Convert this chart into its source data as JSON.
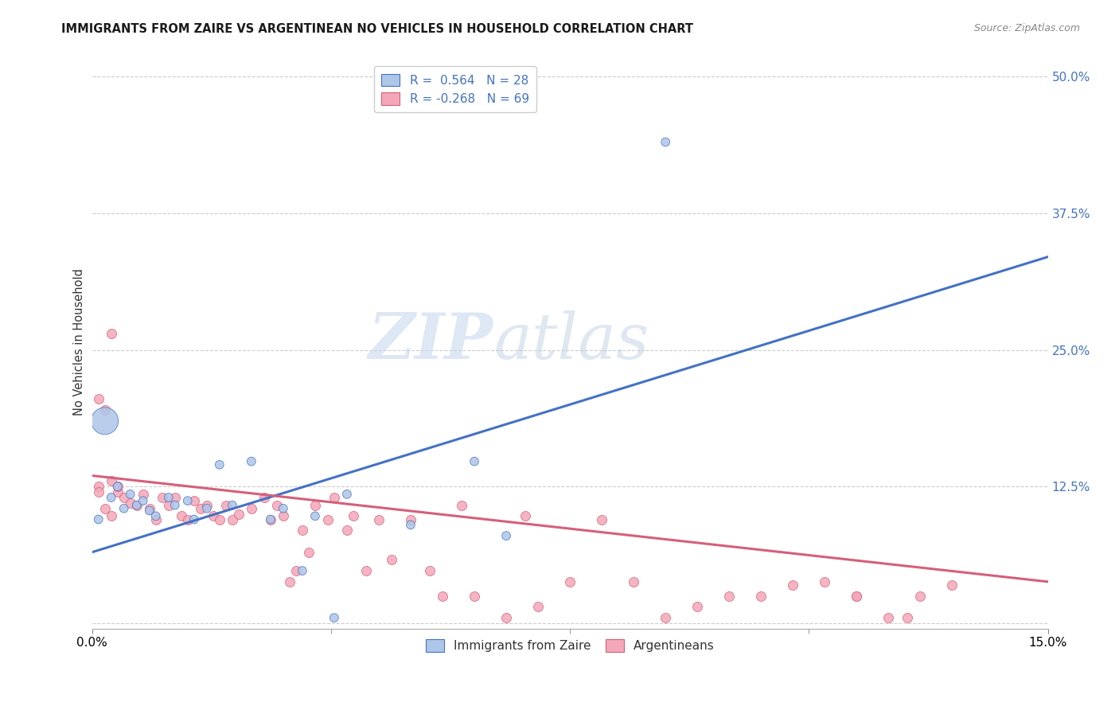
{
  "title": "IMMIGRANTS FROM ZAIRE VS ARGENTINEAN NO VEHICLES IN HOUSEHOLD CORRELATION CHART",
  "source": "Source: ZipAtlas.com",
  "ylabel": "No Vehicles in Household",
  "yticks": [
    0.0,
    0.125,
    0.25,
    0.375,
    0.5
  ],
  "ytick_labels": [
    "",
    "12.5%",
    "25.0%",
    "37.5%",
    "50.0%"
  ],
  "xtick_labels": [
    "0.0%",
    "15.0%"
  ],
  "xlim": [
    0.0,
    0.15
  ],
  "ylim": [
    -0.005,
    0.52
  ],
  "legend_line1": "R =  0.564   N = 28",
  "legend_line2": "R = -0.268   N = 69",
  "legend_bottom": [
    "Immigrants from Zaire",
    "Argentineans"
  ],
  "watermark_zip": "ZIP",
  "watermark_atlas": "atlas",
  "blue_line_color": "#4472c4",
  "pink_line_color": "#d4607a",
  "blue_scatter_color": "#aec6e8",
  "pink_scatter_color": "#f4a7b9",
  "blue_line_x": [
    0.0,
    0.15
  ],
  "blue_line_y": [
    0.065,
    0.335
  ],
  "pink_line_x": [
    0.0,
    0.15
  ],
  "pink_line_y": [
    0.135,
    0.038
  ],
  "background_color": "#ffffff",
  "grid_color": "#cccccc",
  "title_fontsize": 10.5,
  "source_fontsize": 9,
  "blue_scatter_x": [
    0.001,
    0.002,
    0.003,
    0.004,
    0.005,
    0.006,
    0.007,
    0.008,
    0.009,
    0.01,
    0.012,
    0.013,
    0.015,
    0.016,
    0.018,
    0.02,
    0.022,
    0.025,
    0.028,
    0.03,
    0.033,
    0.035,
    0.038,
    0.04,
    0.05,
    0.06,
    0.065,
    0.09
  ],
  "blue_scatter_y": [
    0.095,
    0.185,
    0.115,
    0.125,
    0.105,
    0.118,
    0.108,
    0.112,
    0.103,
    0.098,
    0.115,
    0.108,
    0.112,
    0.095,
    0.105,
    0.145,
    0.108,
    0.148,
    0.095,
    0.105,
    0.048,
    0.098,
    0.005,
    0.118,
    0.09,
    0.148,
    0.08,
    0.44
  ],
  "blue_scatter_sizes": [
    60,
    600,
    60,
    60,
    60,
    60,
    60,
    60,
    60,
    60,
    60,
    60,
    60,
    60,
    60,
    60,
    60,
    60,
    60,
    60,
    60,
    60,
    60,
    60,
    60,
    60,
    60,
    60
  ],
  "pink_scatter_x": [
    0.001,
    0.001,
    0.002,
    0.003,
    0.003,
    0.004,
    0.005,
    0.006,
    0.007,
    0.008,
    0.009,
    0.01,
    0.011,
    0.012,
    0.013,
    0.014,
    0.015,
    0.016,
    0.017,
    0.018,
    0.019,
    0.02,
    0.021,
    0.022,
    0.023,
    0.025,
    0.027,
    0.028,
    0.029,
    0.03,
    0.031,
    0.032,
    0.033,
    0.034,
    0.035,
    0.037,
    0.038,
    0.04,
    0.041,
    0.043,
    0.045,
    0.047,
    0.05,
    0.053,
    0.055,
    0.058,
    0.06,
    0.065,
    0.068,
    0.07,
    0.075,
    0.08,
    0.085,
    0.09,
    0.095,
    0.1,
    0.105,
    0.11,
    0.115,
    0.12,
    0.125,
    0.13,
    0.135,
    0.12,
    0.128,
    0.002,
    0.001,
    0.003,
    0.004
  ],
  "pink_scatter_y": [
    0.125,
    0.12,
    0.105,
    0.13,
    0.098,
    0.12,
    0.115,
    0.11,
    0.108,
    0.118,
    0.105,
    0.095,
    0.115,
    0.108,
    0.115,
    0.098,
    0.095,
    0.112,
    0.105,
    0.108,
    0.098,
    0.095,
    0.108,
    0.095,
    0.1,
    0.105,
    0.115,
    0.095,
    0.108,
    0.098,
    0.038,
    0.048,
    0.085,
    0.065,
    0.108,
    0.095,
    0.115,
    0.085,
    0.098,
    0.048,
    0.095,
    0.058,
    0.095,
    0.048,
    0.025,
    0.108,
    0.025,
    0.005,
    0.098,
    0.015,
    0.038,
    0.095,
    0.038,
    0.005,
    0.015,
    0.025,
    0.025,
    0.035,
    0.038,
    0.025,
    0.005,
    0.025,
    0.035,
    0.025,
    0.005,
    0.195,
    0.205,
    0.265,
    0.125
  ]
}
